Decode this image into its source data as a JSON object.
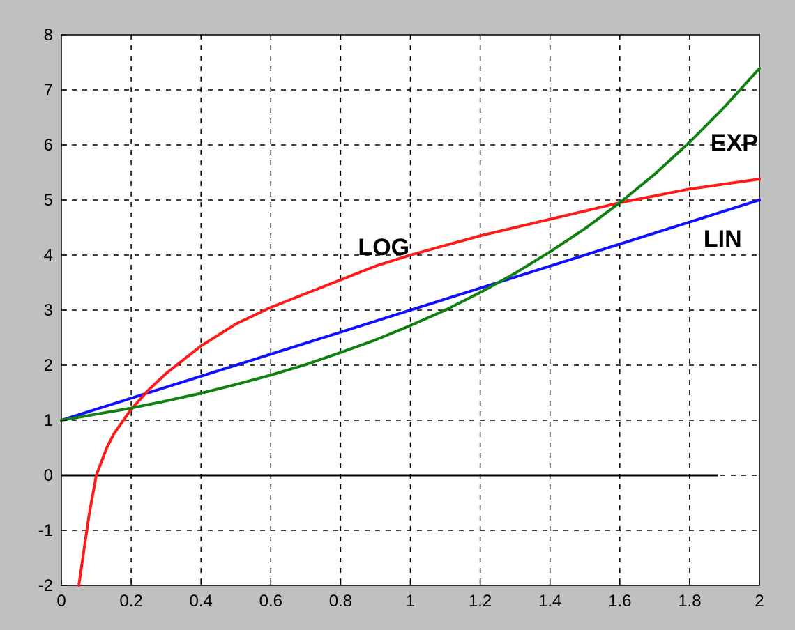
{
  "chart_data": {
    "type": "line",
    "title": "",
    "xlabel": "",
    "ylabel": "",
    "xlim": [
      0,
      2
    ],
    "ylim": [
      -2,
      8
    ],
    "grid": true,
    "grid_style": "dashed",
    "x_ticks": [
      0,
      0.2,
      0.4,
      0.6,
      0.8,
      1,
      1.2,
      1.4,
      1.6,
      1.8,
      2
    ],
    "x_tick_labels": [
      "0",
      "0.2",
      "0.4",
      "0.6",
      "0.8",
      "1",
      "1.2",
      "1.4",
      "1.6",
      "1.8",
      "2"
    ],
    "y_ticks": [
      -2,
      -1,
      0,
      1,
      2,
      3,
      4,
      5,
      6,
      7,
      8
    ],
    "y_tick_labels": [
      "-2",
      "-1",
      "0",
      "1",
      "2",
      "3",
      "4",
      "5",
      "6",
      "7",
      "8"
    ],
    "series": [
      {
        "name": "LIN",
        "color": "#1010ff",
        "x": [
          0,
          0.2,
          0.4,
          0.6,
          0.8,
          1.0,
          1.2,
          1.4,
          1.6,
          1.8,
          2.0
        ],
        "y": [
          1.0,
          1.4,
          1.8,
          2.2,
          2.6,
          3.0,
          3.4,
          3.8,
          4.2,
          4.6,
          5.0
        ]
      },
      {
        "name": "LOG",
        "color": "#ff1a1a",
        "x": [
          0.05,
          0.08,
          0.1,
          0.13,
          0.15,
          0.2,
          0.25,
          0.3,
          0.35,
          0.4,
          0.5,
          0.6,
          0.7,
          0.8,
          0.9,
          1.0,
          1.2,
          1.4,
          1.6,
          1.8,
          2.0
        ],
        "y": [
          -2.0,
          -0.7,
          0.0,
          0.5,
          0.75,
          1.2,
          1.55,
          1.85,
          2.1,
          2.35,
          2.75,
          3.05,
          3.3,
          3.55,
          3.8,
          4.0,
          4.35,
          4.65,
          4.95,
          5.2,
          5.38
        ]
      },
      {
        "name": "EXP",
        "color": "#108010",
        "x": [
          0,
          0.2,
          0.3,
          0.4,
          0.5,
          0.6,
          0.7,
          0.8,
          0.9,
          1.0,
          1.1,
          1.2,
          1.3,
          1.4,
          1.5,
          1.6,
          1.7,
          1.8,
          1.9,
          2.0
        ],
        "y": [
          1.0,
          1.22,
          1.35,
          1.49,
          1.65,
          1.82,
          2.01,
          2.23,
          2.46,
          2.72,
          3.0,
          3.32,
          3.67,
          4.06,
          4.48,
          4.95,
          5.47,
          6.05,
          6.69,
          7.39
        ]
      }
    ],
    "zero_line": {
      "color": "#000000",
      "x_end": 1.88
    },
    "annotations": [
      {
        "text": "LOG",
        "x": 0.85,
        "y": 4.0
      },
      {
        "text": "LIN",
        "x": 1.84,
        "y": 4.15
      },
      {
        "text": "EXP",
        "x": 1.86,
        "y": 5.9
      }
    ]
  }
}
